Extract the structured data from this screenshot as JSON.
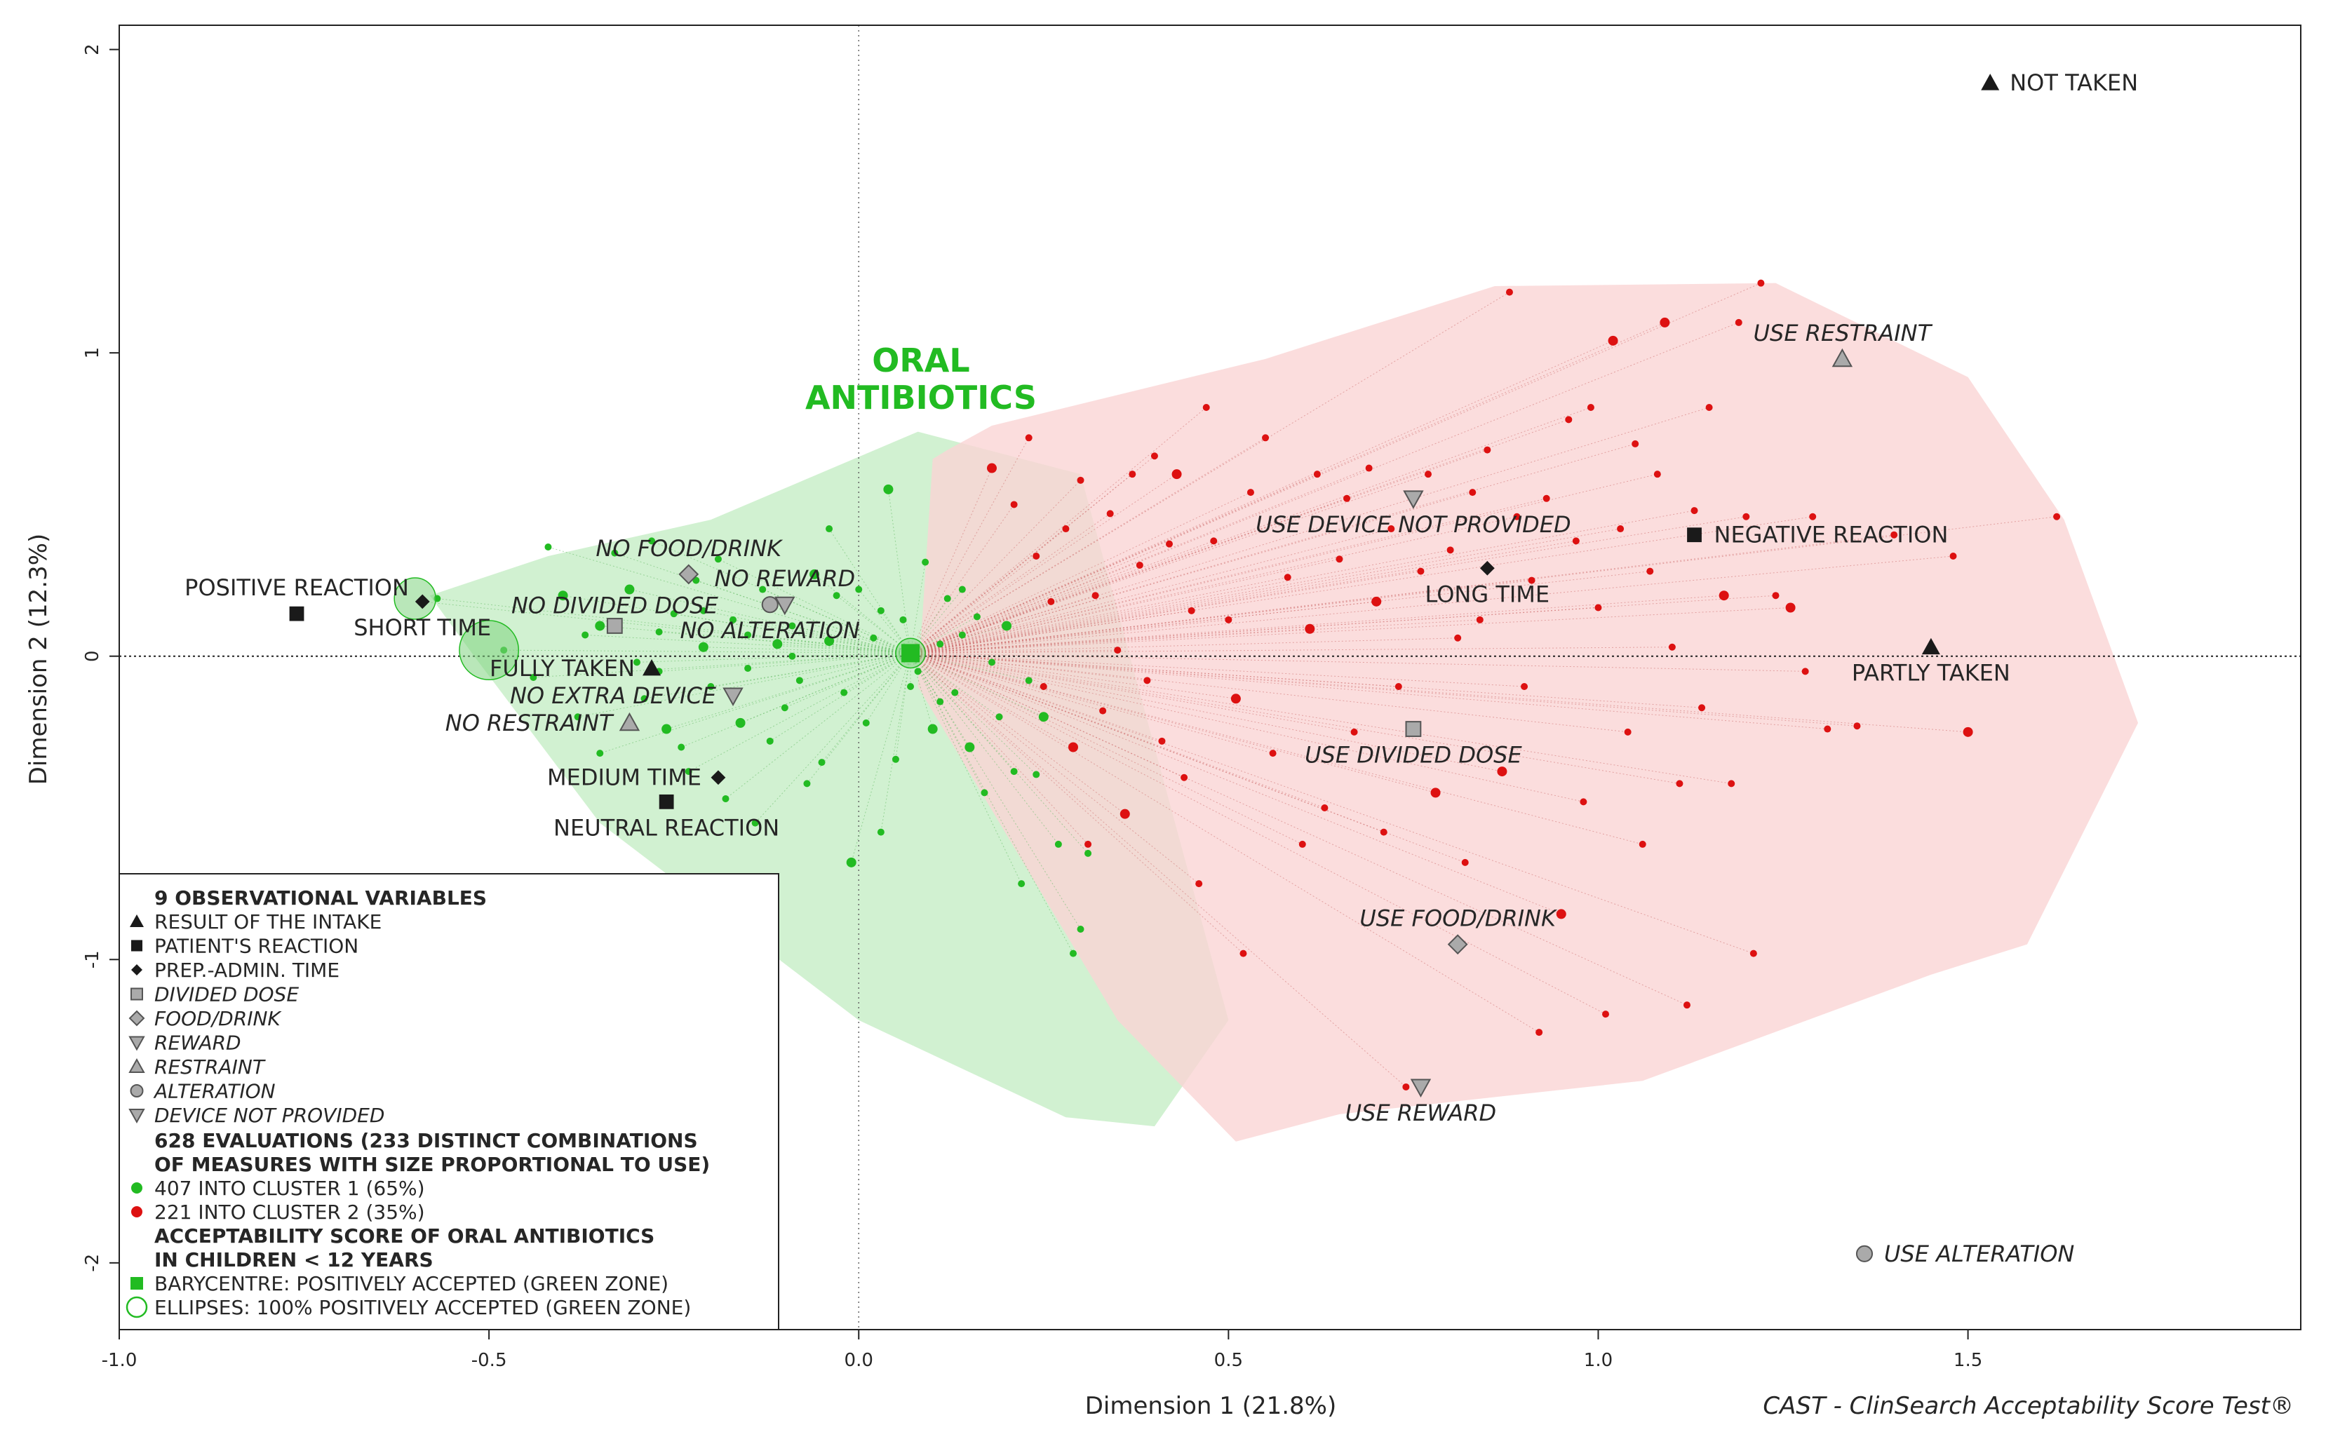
{
  "chart_data": {
    "type": "scatter",
    "title": [
      "ORAL",
      "ANTIBIOTICS"
    ],
    "xlabel": "Dimension 1 (21.8%)",
    "ylabel": "Dimension 2 (12.3%)",
    "xlim": [
      -1.0,
      1.95
    ],
    "ylim": [
      -2.22,
      2.08
    ],
    "xticks": [
      -1.0,
      -0.5,
      0.0,
      0.5,
      1.0,
      1.5
    ],
    "xtick_labels": [
      "-1.0",
      "-0.5",
      "0.0",
      "0.5",
      "1.0",
      "1.5"
    ],
    "yticks": [
      2,
      1,
      0,
      -1,
      -2
    ],
    "ytick_labels": [
      "2",
      "1",
      "0",
      "-1",
      "-2"
    ],
    "credit": "CAST - ClinSearch Acceptability Score Test®",
    "colors": {
      "cluster1": "#22bb22",
      "cluster2": "#dd1111",
      "zone1": "#c9efc9",
      "zone2": "#fad4d4",
      "marker": "#1a1a1a",
      "grey": "#aaaaaa"
    },
    "zones": [
      {
        "name": "cluster-1-zone",
        "points": [
          [
            -0.58,
            0.2
          ],
          [
            -0.42,
            0.33
          ],
          [
            -0.2,
            0.45
          ],
          [
            0.08,
            0.74
          ],
          [
            0.3,
            0.6
          ],
          [
            0.5,
            -1.2
          ],
          [
            0.4,
            -1.55
          ],
          [
            0.28,
            -1.52
          ],
          [
            0.0,
            -1.2
          ],
          [
            -0.35,
            -0.55
          ],
          [
            -0.52,
            0.0
          ]
        ]
      },
      {
        "name": "cluster-2-zone",
        "points": [
          [
            0.12,
            0.68
          ],
          [
            0.18,
            0.76
          ],
          [
            0.55,
            0.98
          ],
          [
            0.86,
            1.22
          ],
          [
            1.24,
            1.23
          ],
          [
            1.5,
            0.92
          ],
          [
            1.63,
            0.45
          ],
          [
            1.73,
            -0.22
          ],
          [
            1.58,
            -0.95
          ],
          [
            1.45,
            -1.05
          ],
          [
            1.06,
            -1.4
          ],
          [
            0.65,
            -1.51
          ],
          [
            0.51,
            -1.6
          ],
          [
            0.35,
            -1.2
          ],
          [
            0.08,
            -0.1
          ],
          [
            0.1,
            0.65
          ]
        ]
      }
    ],
    "variables": [
      {
        "label": "NOT TAKEN",
        "x": 1.53,
        "y": 1.89,
        "marker": "triangle",
        "italic": false,
        "label_pos": "right"
      },
      {
        "label": "PARTLY TAKEN",
        "x": 1.45,
        "y": 0.03,
        "marker": "triangle",
        "italic": false,
        "label_pos": "below"
      },
      {
        "label": "FULLY TAKEN",
        "x": -0.28,
        "y": -0.04,
        "marker": "triangle",
        "italic": false,
        "label_pos": "left"
      },
      {
        "label": "POSITIVE REACTION",
        "x": -0.76,
        "y": 0.14,
        "marker": "square",
        "italic": false,
        "label_pos": "above"
      },
      {
        "label": "NEGATIVE REACTION",
        "x": 1.13,
        "y": 0.4,
        "marker": "square",
        "italic": false,
        "label_pos": "right"
      },
      {
        "label": "NEUTRAL REACTION",
        "x": -0.26,
        "y": -0.48,
        "marker": "square",
        "italic": false,
        "label_pos": "below"
      },
      {
        "label": "SHORT TIME",
        "x": -0.59,
        "y": 0.18,
        "marker": "diamond",
        "italic": false,
        "label_pos": "below"
      },
      {
        "label": "LONG TIME",
        "x": 0.85,
        "y": 0.29,
        "marker": "diamond",
        "italic": false,
        "label_pos": "below"
      },
      {
        "label": "MEDIUM TIME",
        "x": -0.19,
        "y": -0.4,
        "marker": "diamond",
        "italic": false,
        "label_pos": "left"
      },
      {
        "label": "NO DIVIDED DOSE",
        "x": -0.33,
        "y": 0.1,
        "marker": "gsquare",
        "italic": true,
        "label_pos": "aboveleft"
      },
      {
        "label": "USE DIVIDED DOSE",
        "x": 0.75,
        "y": -0.24,
        "marker": "gsquare",
        "italic": true,
        "label_pos": "below"
      },
      {
        "label": "NO FOOD/DRINK",
        "x": -0.23,
        "y": 0.27,
        "marker": "gdiamond",
        "italic": true,
        "label_pos": "above"
      },
      {
        "label": "USE FOOD/DRINK",
        "x": 0.81,
        "y": -0.95,
        "marker": "gdiamond",
        "italic": true,
        "label_pos": "above"
      },
      {
        "label": "NO REWARD",
        "x": -0.1,
        "y": 0.17,
        "marker": "gtriangle_down",
        "italic": true,
        "label_pos": "above"
      },
      {
        "label": "USE REWARD",
        "x": 0.76,
        "y": -1.42,
        "marker": "gtriangle_down",
        "italic": true,
        "label_pos": "below"
      },
      {
        "label": "NO RESTRAINT",
        "x": -0.31,
        "y": -0.22,
        "marker": "gtriangle",
        "italic": true,
        "label_pos": "left"
      },
      {
        "label": "USE RESTRAINT",
        "x": 1.33,
        "y": 0.98,
        "marker": "gtriangle",
        "italic": true,
        "label_pos": "above"
      },
      {
        "label": "NO ALTERATION",
        "x": -0.12,
        "y": 0.17,
        "marker": "gcircle",
        "italic": true,
        "label_pos": "below"
      },
      {
        "label": "USE ALTERATION",
        "x": 1.36,
        "y": -1.97,
        "marker": "gcircle",
        "italic": true,
        "label_pos": "right"
      },
      {
        "label": "NO EXTRA DEVICE",
        "x": -0.17,
        "y": -0.13,
        "marker": "gtriangle_down",
        "italic": true,
        "label_pos": "left"
      },
      {
        "label": "USE DEVICE NOT PROVIDED",
        "x": 0.75,
        "y": 0.52,
        "marker": "gtriangle_down",
        "italic": true,
        "label_pos": "below"
      }
    ],
    "barycentre": {
      "x": 0.07,
      "y": 0.01
    },
    "ellipses": [
      {
        "x": -0.6,
        "y": 0.19,
        "r": 0.028
      },
      {
        "x": -0.5,
        "y": 0.02,
        "r": 0.04
      },
      {
        "x": 0.07,
        "y": 0.01,
        "r": 0.02
      }
    ],
    "cluster1": [
      [
        -0.59,
        0.18
      ],
      [
        -0.57,
        0.19
      ],
      [
        -0.48,
        0.02
      ],
      [
        -0.44,
        -0.07
      ],
      [
        -0.42,
        0.36
      ],
      [
        -0.4,
        0.2
      ],
      [
        -0.38,
        -0.2
      ],
      [
        -0.37,
        0.07
      ],
      [
        -0.35,
        -0.32
      ],
      [
        -0.33,
        0.34
      ],
      [
        -0.31,
        0.22
      ],
      [
        -0.3,
        -0.02
      ],
      [
        -0.29,
        -0.14
      ],
      [
        -0.28,
        0.38
      ],
      [
        -0.27,
        0.08
      ],
      [
        -0.26,
        -0.24
      ],
      [
        -0.25,
        0.14
      ],
      [
        -0.24,
        -0.3
      ],
      [
        -0.23,
        -0.38
      ],
      [
        -0.22,
        0.25
      ],
      [
        -0.21,
        0.03
      ],
      [
        -0.2,
        -0.1
      ],
      [
        -0.19,
        0.32
      ],
      [
        -0.18,
        -0.47
      ],
      [
        -0.17,
        0.12
      ],
      [
        -0.16,
        -0.22
      ],
      [
        -0.15,
        0.07
      ],
      [
        -0.14,
        -0.55
      ],
      [
        -0.13,
        0.22
      ],
      [
        -0.12,
        -0.28
      ],
      [
        -0.11,
        0.04
      ],
      [
        -0.1,
        -0.17
      ],
      [
        -0.09,
        0.1
      ],
      [
        -0.08,
        -0.08
      ],
      [
        -0.07,
        -0.42
      ],
      [
        -0.06,
        0.27
      ],
      [
        -0.05,
        -0.35
      ],
      [
        -0.04,
        0.42
      ],
      [
        -0.03,
        0.2
      ],
      [
        -0.02,
        -0.12
      ],
      [
        -0.01,
        -0.68
      ],
      [
        0.0,
        0.22
      ],
      [
        0.01,
        -0.22
      ],
      [
        0.02,
        0.06
      ],
      [
        0.03,
        -0.58
      ],
      [
        0.04,
        0.55
      ],
      [
        0.05,
        -0.34
      ],
      [
        0.06,
        0.12
      ],
      [
        0.08,
        -0.05
      ],
      [
        0.09,
        0.31
      ],
      [
        0.1,
        -0.24
      ],
      [
        0.11,
        0.04
      ],
      [
        0.12,
        0.19
      ],
      [
        0.13,
        -0.12
      ],
      [
        0.14,
        0.07
      ],
      [
        0.15,
        -0.3
      ],
      [
        0.16,
        0.13
      ],
      [
        0.17,
        -0.45
      ],
      [
        0.18,
        -0.02
      ],
      [
        0.19,
        -0.2
      ],
      [
        0.2,
        0.1
      ],
      [
        0.21,
        -0.38
      ],
      [
        0.22,
        -0.75
      ],
      [
        0.23,
        -0.08
      ],
      [
        0.24,
        -0.39
      ],
      [
        0.25,
        -0.2
      ],
      [
        0.27,
        -0.62
      ],
      [
        0.29,
        -0.98
      ],
      [
        0.3,
        -0.9
      ],
      [
        0.31,
        -0.65
      ],
      [
        -0.35,
        0.1
      ],
      [
        -0.27,
        -0.05
      ],
      [
        -0.21,
        0.15
      ],
      [
        -0.15,
        -0.04
      ],
      [
        -0.09,
        0.0
      ],
      [
        -0.04,
        0.05
      ],
      [
        0.03,
        0.15
      ],
      [
        0.07,
        -0.1
      ],
      [
        0.11,
        -0.15
      ],
      [
        0.14,
        0.22
      ]
    ],
    "cluster2": [
      [
        0.18,
        0.62
      ],
      [
        0.21,
        0.5
      ],
      [
        0.23,
        0.72
      ],
      [
        0.24,
        0.33
      ],
      [
        0.25,
        -0.1
      ],
      [
        0.26,
        0.18
      ],
      [
        0.28,
        0.42
      ],
      [
        0.29,
        -0.3
      ],
      [
        0.3,
        0.58
      ],
      [
        0.31,
        -0.62
      ],
      [
        0.32,
        0.2
      ],
      [
        0.33,
        -0.18
      ],
      [
        0.34,
        0.47
      ],
      [
        0.35,
        0.02
      ],
      [
        0.36,
        -0.52
      ],
      [
        0.37,
        0.6
      ],
      [
        0.38,
        0.3
      ],
      [
        0.39,
        -0.08
      ],
      [
        0.4,
        0.66
      ],
      [
        0.41,
        -0.28
      ],
      [
        0.42,
        0.37
      ],
      [
        0.43,
        0.6
      ],
      [
        0.44,
        -0.4
      ],
      [
        0.45,
        0.15
      ],
      [
        0.46,
        -0.75
      ],
      [
        0.47,
        0.82
      ],
      [
        0.48,
        0.38
      ],
      [
        0.5,
        0.12
      ],
      [
        0.51,
        -0.14
      ],
      [
        0.52,
        -0.98
      ],
      [
        0.53,
        0.54
      ],
      [
        0.55,
        0.72
      ],
      [
        0.56,
        -0.32
      ],
      [
        0.58,
        0.26
      ],
      [
        0.6,
        -0.62
      ],
      [
        0.61,
        0.09
      ],
      [
        0.62,
        0.6
      ],
      [
        0.63,
        -0.5
      ],
      [
        0.65,
        0.32
      ],
      [
        0.66,
        0.52
      ],
      [
        0.67,
        -0.25
      ],
      [
        0.69,
        0.62
      ],
      [
        0.7,
        0.18
      ],
      [
        0.71,
        -0.58
      ],
      [
        0.72,
        0.42
      ],
      [
        0.73,
        -0.1
      ],
      [
        0.74,
        -1.42
      ],
      [
        0.76,
        0.28
      ],
      [
        0.77,
        0.6
      ],
      [
        0.78,
        -0.45
      ],
      [
        0.8,
        0.35
      ],
      [
        0.81,
        0.06
      ],
      [
        0.82,
        -0.68
      ],
      [
        0.83,
        0.54
      ],
      [
        0.84,
        0.12
      ],
      [
        0.85,
        0.68
      ],
      [
        0.87,
        -0.38
      ],
      [
        0.88,
        1.2
      ],
      [
        0.89,
        0.46
      ],
      [
        0.9,
        -0.1
      ],
      [
        0.91,
        0.25
      ],
      [
        0.92,
        -1.24
      ],
      [
        0.93,
        0.52
      ],
      [
        0.95,
        -0.85
      ],
      [
        0.96,
        0.78
      ],
      [
        0.97,
        0.38
      ],
      [
        0.98,
        -0.48
      ],
      [
        0.99,
        0.82
      ],
      [
        1.0,
        0.16
      ],
      [
        1.01,
        -1.18
      ],
      [
        1.02,
        1.04
      ],
      [
        1.03,
        0.42
      ],
      [
        1.04,
        -0.25
      ],
      [
        1.05,
        0.7
      ],
      [
        1.06,
        -0.62
      ],
      [
        1.07,
        0.28
      ],
      [
        1.08,
        0.6
      ],
      [
        1.09,
        1.1
      ],
      [
        1.1,
        0.03
      ],
      [
        1.11,
        -0.42
      ],
      [
        1.12,
        -1.15
      ],
      [
        1.13,
        0.48
      ],
      [
        1.14,
        -0.17
      ],
      [
        1.15,
        0.82
      ],
      [
        1.17,
        0.2
      ],
      [
        1.18,
        -0.42
      ],
      [
        1.19,
        1.1
      ],
      [
        1.2,
        0.46
      ],
      [
        1.21,
        -0.98
      ],
      [
        1.22,
        1.23
      ],
      [
        1.24,
        0.2
      ],
      [
        1.26,
        0.16
      ],
      [
        1.28,
        -0.05
      ],
      [
        1.29,
        0.46
      ],
      [
        1.31,
        -0.24
      ],
      [
        1.35,
        -0.23
      ],
      [
        1.4,
        0.4
      ],
      [
        1.48,
        0.33
      ],
      [
        1.5,
        -0.25
      ],
      [
        1.62,
        0.46
      ]
    ]
  },
  "legend": {
    "header1": "9 OBSERVATIONAL VARIABLES",
    "items": [
      {
        "marker": "triangle",
        "label": "RESULT OF THE INTAKE",
        "italic": false
      },
      {
        "marker": "square",
        "label": "PATIENT'S REACTION",
        "italic": false
      },
      {
        "marker": "diamond",
        "label": "PREP.-ADMIN. TIME",
        "italic": false
      },
      {
        "marker": "gsquare",
        "label": "DIVIDED DOSE",
        "italic": true
      },
      {
        "marker": "gdiamond",
        "label": "FOOD/DRINK",
        "italic": true
      },
      {
        "marker": "gtriangle_down",
        "label": "REWARD",
        "italic": true
      },
      {
        "marker": "gtriangle",
        "label": "RESTRAINT",
        "italic": true
      },
      {
        "marker": "gcircle",
        "label": "ALTERATION",
        "italic": true
      },
      {
        "marker": "gtriangle_down",
        "label": "DEVICE NOT PROVIDED",
        "italic": true
      }
    ],
    "header2": [
      "628 EVALUATIONS (233 DISTINCT COMBINATIONS",
      "OF MEASURES WITH SIZE PROPORTIONAL TO USE)"
    ],
    "cluster1": "407 INTO CLUSTER 1 (65%)",
    "cluster2": "221 INTO CLUSTER 2 (35%)",
    "header3": [
      "ACCEPTABILITY SCORE OF ORAL ANTIBIOTICS",
      "IN CHILDREN < 12 YEARS"
    ],
    "barycentre": "BARYCENTRE: POSITIVELY ACCEPTED (GREEN ZONE)",
    "ellipses": "ELLIPSES: 100% POSITIVELY ACCEPTED (GREEN ZONE)"
  }
}
